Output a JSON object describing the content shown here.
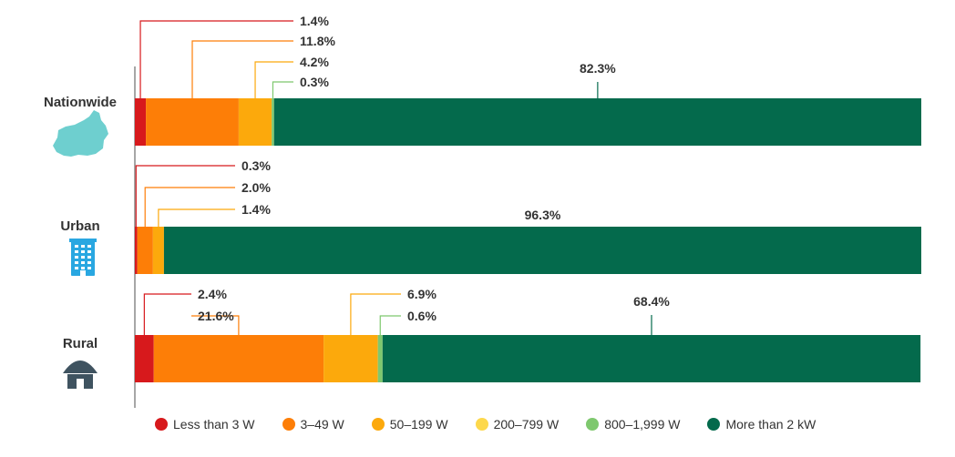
{
  "chart_data": {
    "type": "bar",
    "orientation": "horizontal",
    "stacked": true,
    "categories": [
      "Nationwide",
      "Urban",
      "Rural"
    ],
    "series": [
      {
        "name": "Less than 3 W",
        "color": "#d7191c",
        "values": [
          1.4,
          0.3,
          2.4
        ],
        "labels": [
          "1.4%",
          "0.3%",
          "2.4%"
        ]
      },
      {
        "name": "3–49 W",
        "color": "#fd7e07",
        "values": [
          11.8,
          2.0,
          21.6
        ],
        "labels": [
          "11.8%",
          "2.0%",
          "21.6%"
        ]
      },
      {
        "name": "50–199 W",
        "color": "#fca90c",
        "values": [
          4.2,
          1.4,
          6.9
        ],
        "labels": [
          "4.2%",
          "1.4%",
          "6.9%"
        ]
      },
      {
        "name": "200–799 W",
        "color": "#fdd84c",
        "values": [
          0,
          0,
          0
        ],
        "labels": [
          null,
          null,
          null
        ]
      },
      {
        "name": "800–1,999 W",
        "color": "#7ec86e",
        "values": [
          0.3,
          0.0,
          0.6
        ],
        "labels": [
          "0.3%",
          null,
          "0.6%"
        ]
      },
      {
        "name": "More than 2 kW",
        "color": "#046a4c",
        "values": [
          82.3,
          96.3,
          68.4
        ],
        "labels": [
          "82.3%",
          "96.3%",
          "68.4%"
        ]
      }
    ],
    "xlim": [
      0,
      100
    ],
    "legend_position": "bottom",
    "icons": [
      "country-map-icon",
      "building-icon",
      "hut-icon"
    ]
  }
}
